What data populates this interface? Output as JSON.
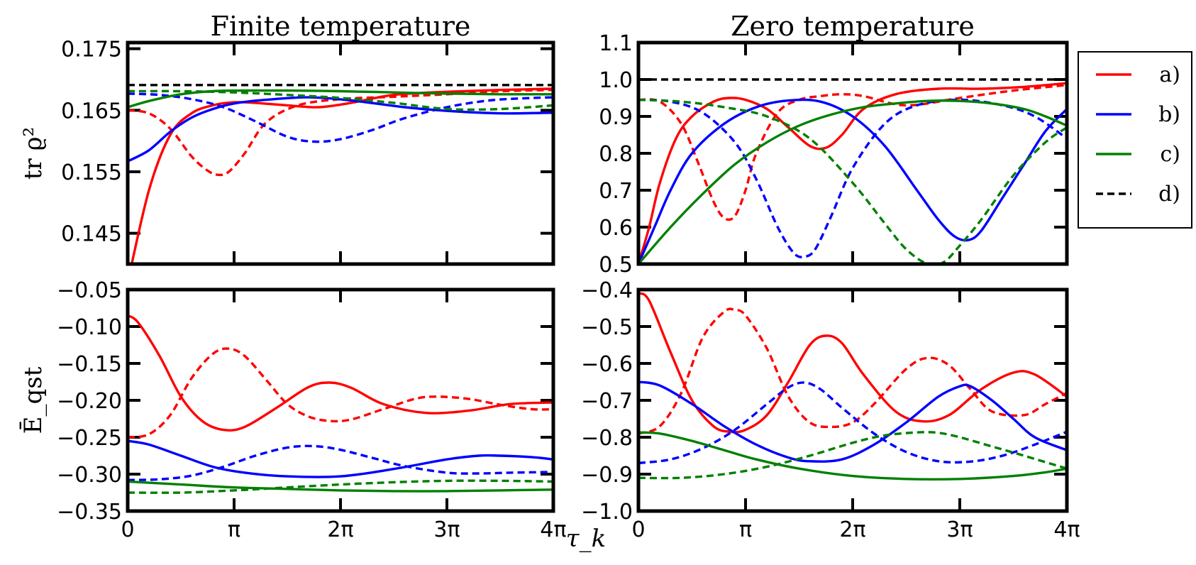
{
  "figure": {
    "xlabel": "τ_k",
    "legend": {
      "placement": "right-of-top-panels",
      "entries": [
        {
          "label": "a)",
          "color": "#ff0000",
          "dashed": false
        },
        {
          "label": "b)",
          "color": "#0000ff",
          "dashed": false
        },
        {
          "label": "c)",
          "color": "#008000",
          "dashed": false
        },
        {
          "label": "d)",
          "color": "#000000",
          "dashed": true
        }
      ]
    },
    "colors": {
      "a": "#ff0000",
      "b": "#0000ff",
      "c": "#008000",
      "d": "#000000"
    }
  },
  "chart_data": [
    {
      "id": "finite_purity",
      "type": "line",
      "title": "Finite temperature",
      "ylabel": "tr ϱ²",
      "xlabel": "",
      "xlim": [
        0,
        4
      ],
      "ylim": [
        0.14,
        0.176
      ],
      "xticks": [
        0,
        1,
        2,
        3,
        4
      ],
      "xtick_labels": [
        "0",
        "π",
        "2π",
        "3π",
        "4π"
      ],
      "show_xtick_labels": false,
      "yticks": [
        0.145,
        0.155,
        0.165,
        0.175
      ],
      "ytick_labels": [
        "0.145",
        "0.155",
        "0.165",
        "0.175"
      ],
      "series": [
        {
          "key": "a",
          "dashed": false,
          "x": [
            0,
            0.2,
            0.4,
            0.6,
            0.8,
            1,
            1.2,
            1.5,
            1.8,
            2.1,
            2.5,
            3,
            3.5,
            4
          ],
          "y": [
            0.137,
            0.152,
            0.161,
            0.1645,
            0.1658,
            0.1663,
            0.1662,
            0.1658,
            0.1655,
            0.1662,
            0.1675,
            0.168,
            0.1683,
            0.1685
          ]
        },
        {
          "key": "a",
          "dashed": true,
          "x": [
            0,
            0.2,
            0.4,
            0.6,
            0.75,
            0.85,
            0.95,
            1.1,
            1.3,
            1.6,
            2,
            2.5,
            3,
            3.5,
            4
          ],
          "y": [
            0.165,
            0.1645,
            0.162,
            0.1575,
            0.1552,
            0.1545,
            0.155,
            0.158,
            0.163,
            0.1658,
            0.1668,
            0.1672,
            0.1676,
            0.1681,
            0.1683
          ]
        },
        {
          "key": "b",
          "dashed": false,
          "x": [
            0,
            0.2,
            0.4,
            0.6,
            0.8,
            1,
            1.3,
            1.7,
            2.1,
            2.6,
            3,
            3.5,
            4
          ],
          "y": [
            0.1567,
            0.1585,
            0.1615,
            0.1638,
            0.1652,
            0.1661,
            0.1667,
            0.1671,
            0.1666,
            0.1655,
            0.1649,
            0.1645,
            0.1646
          ]
        },
        {
          "key": "b",
          "dashed": true,
          "x": [
            0,
            0.3,
            0.6,
            0.9,
            1.2,
            1.5,
            1.75,
            2,
            2.3,
            2.6,
            3,
            3.4,
            3.8,
            4
          ],
          "y": [
            0.1677,
            0.1675,
            0.1668,
            0.1655,
            0.1632,
            0.1607,
            0.1599,
            0.1603,
            0.1618,
            0.1637,
            0.1655,
            0.1666,
            0.167,
            0.1671
          ]
        },
        {
          "key": "c",
          "dashed": false,
          "x": [
            0,
            0.2,
            0.5,
            0.8,
            1.1,
            1.5,
            2,
            2.5,
            3,
            3.5,
            4
          ],
          "y": [
            0.1655,
            0.1665,
            0.1676,
            0.1681,
            0.1682,
            0.1682,
            0.1681,
            0.1679,
            0.1677,
            0.1676,
            0.1676
          ]
        },
        {
          "key": "c",
          "dashed": true,
          "x": [
            0,
            0.5,
            1,
            1.5,
            2,
            2.5,
            3,
            3.5,
            4
          ],
          "y": [
            0.1681,
            0.1681,
            0.1679,
            0.1675,
            0.167,
            0.1662,
            0.1652,
            0.1652,
            0.1658
          ]
        },
        {
          "key": "d",
          "dashed": true,
          "x": [
            0,
            4
          ],
          "y": [
            0.1691,
            0.1691
          ]
        }
      ]
    },
    {
      "id": "zero_purity",
      "type": "line",
      "title": "Zero temperature",
      "ylabel": "",
      "xlabel": "",
      "xlim": [
        0,
        4
      ],
      "ylim": [
        0.5,
        1.1
      ],
      "xticks": [
        0,
        1,
        2,
        3,
        4
      ],
      "xtick_labels": [
        "0",
        "π",
        "2π",
        "3π",
        "4π"
      ],
      "show_xtick_labels": false,
      "yticks": [
        0.5,
        0.6,
        0.7,
        0.8,
        0.9,
        1.0,
        1.1
      ],
      "ytick_labels": [
        "0.5",
        "0.6",
        "0.7",
        "0.8",
        "0.9",
        "1.0",
        "1.1"
      ],
      "series": [
        {
          "key": "a",
          "dashed": false,
          "x": [
            0,
            0.1,
            0.2,
            0.35,
            0.5,
            0.7,
            0.85,
            1,
            1.2,
            1.4,
            1.6,
            1.75,
            1.9,
            2.1,
            2.4,
            2.8,
            3.2,
            3.6,
            4
          ],
          "y": [
            0.5,
            0.6,
            0.72,
            0.84,
            0.9,
            0.94,
            0.95,
            0.945,
            0.92,
            0.87,
            0.82,
            0.815,
            0.85,
            0.92,
            0.96,
            0.975,
            0.975,
            0.98,
            0.99
          ]
        },
        {
          "key": "a",
          "dashed": true,
          "x": [
            0,
            0.2,
            0.4,
            0.55,
            0.7,
            0.8,
            0.9,
            1,
            1.1,
            1.3,
            1.5,
            1.7,
            1.9,
            2.1,
            2.5,
            3,
            3.5,
            4
          ],
          "y": [
            0.945,
            0.94,
            0.88,
            0.78,
            0.67,
            0.625,
            0.63,
            0.7,
            0.8,
            0.91,
            0.945,
            0.955,
            0.96,
            0.955,
            0.93,
            0.95,
            0.97,
            0.985
          ]
        },
        {
          "key": "b",
          "dashed": false,
          "x": [
            0,
            0.15,
            0.3,
            0.5,
            0.8,
            1.1,
            1.4,
            1.7,
            2,
            2.3,
            2.6,
            2.8,
            2.95,
            3.08,
            3.2,
            3.4,
            3.6,
            3.8,
            4
          ],
          "y": [
            0.5,
            0.6,
            0.7,
            0.8,
            0.88,
            0.925,
            0.943,
            0.94,
            0.9,
            0.82,
            0.7,
            0.62,
            0.575,
            0.565,
            0.59,
            0.68,
            0.77,
            0.86,
            0.92
          ]
        },
        {
          "key": "b",
          "dashed": true,
          "x": [
            0,
            0.3,
            0.6,
            0.9,
            1.1,
            1.3,
            1.45,
            1.55,
            1.65,
            1.8,
            2,
            2.3,
            2.6,
            3,
            3.4,
            3.7,
            4
          ],
          "y": [
            0.945,
            0.94,
            0.91,
            0.83,
            0.73,
            0.6,
            0.53,
            0.52,
            0.54,
            0.63,
            0.76,
            0.88,
            0.93,
            0.945,
            0.93,
            0.9,
            0.84
          ]
        },
        {
          "key": "c",
          "dashed": false,
          "x": [
            0,
            0.3,
            0.6,
            0.9,
            1.2,
            1.5,
            1.8,
            2.1,
            2.4,
            2.7,
            3,
            3.3,
            3.6,
            3.8,
            4
          ],
          "y": [
            0.5,
            0.6,
            0.69,
            0.77,
            0.83,
            0.875,
            0.905,
            0.925,
            0.935,
            0.942,
            0.942,
            0.935,
            0.92,
            0.9,
            0.875
          ]
        },
        {
          "key": "c",
          "dashed": true,
          "x": [
            0,
            0.4,
            0.8,
            1.2,
            1.6,
            2,
            2.3,
            2.5,
            2.7,
            2.85,
            3,
            3.2,
            3.5,
            3.8,
            4
          ],
          "y": [
            0.945,
            0.94,
            0.925,
            0.9,
            0.84,
            0.72,
            0.61,
            0.54,
            0.5,
            0.505,
            0.55,
            0.62,
            0.74,
            0.83,
            0.87
          ]
        },
        {
          "key": "d",
          "dashed": true,
          "x": [
            0,
            4
          ],
          "y": [
            1.0,
            1.0
          ]
        }
      ]
    },
    {
      "id": "finite_energy",
      "type": "line",
      "title": "",
      "ylabel": "Ē_qst",
      "xlabel": "",
      "xlim": [
        0,
        4
      ],
      "ylim": [
        -0.35,
        -0.05
      ],
      "xticks": [
        0,
        1,
        2,
        3,
        4
      ],
      "xtick_labels": [
        "0",
        "π",
        "2π",
        "3π",
        "4π"
      ],
      "show_xtick_labels": true,
      "yticks": [
        -0.35,
        -0.3,
        -0.25,
        -0.2,
        -0.15,
        -0.1,
        -0.05
      ],
      "ytick_labels": [
        "−0.35",
        "−0.30",
        "−0.25",
        "−0.20",
        "−0.15",
        "−0.10",
        "−0.05"
      ],
      "series": [
        {
          "key": "a",
          "dashed": false,
          "x": [
            0,
            0.1,
            0.3,
            0.5,
            0.7,
            0.9,
            1.1,
            1.4,
            1.7,
            1.9,
            2.1,
            2.4,
            2.8,
            3.2,
            3.6,
            4
          ],
          "y": [
            -0.085,
            -0.095,
            -0.14,
            -0.195,
            -0.228,
            -0.24,
            -0.236,
            -0.21,
            -0.182,
            -0.176,
            -0.183,
            -0.205,
            -0.217,
            -0.214,
            -0.205,
            -0.203
          ]
        },
        {
          "key": "a",
          "dashed": true,
          "x": [
            0,
            0.2,
            0.4,
            0.6,
            0.8,
            0.95,
            1.1,
            1.3,
            1.5,
            1.7,
            1.9,
            2.1,
            2.4,
            2.7,
            2.9,
            3.2,
            3.5,
            3.8,
            4
          ],
          "y": [
            -0.25,
            -0.246,
            -0.22,
            -0.17,
            -0.137,
            -0.13,
            -0.14,
            -0.172,
            -0.205,
            -0.222,
            -0.228,
            -0.226,
            -0.212,
            -0.198,
            -0.195,
            -0.198,
            -0.206,
            -0.212,
            -0.212
          ]
        },
        {
          "key": "b",
          "dashed": false,
          "x": [
            0,
            0.2,
            0.5,
            0.8,
            1.1,
            1.5,
            2,
            2.5,
            3,
            3.3,
            3.5,
            3.8,
            4
          ],
          "y": [
            -0.255,
            -0.26,
            -0.275,
            -0.29,
            -0.298,
            -0.303,
            -0.303,
            -0.293,
            -0.28,
            -0.275,
            -0.275,
            -0.277,
            -0.28
          ]
        },
        {
          "key": "b",
          "dashed": true,
          "x": [
            0,
            0.3,
            0.6,
            0.9,
            1.2,
            1.5,
            1.75,
            2,
            2.3,
            2.6,
            3,
            3.3,
            3.6,
            4
          ],
          "y": [
            -0.308,
            -0.307,
            -0.302,
            -0.29,
            -0.275,
            -0.264,
            -0.262,
            -0.267,
            -0.278,
            -0.289,
            -0.298,
            -0.299,
            -0.298,
            -0.297
          ]
        },
        {
          "key": "c",
          "dashed": false,
          "x": [
            0,
            0.5,
            1,
            1.5,
            2,
            2.5,
            3,
            3.5,
            4
          ],
          "y": [
            -0.31,
            -0.314,
            -0.318,
            -0.32,
            -0.322,
            -0.323,
            -0.323,
            -0.322,
            -0.321
          ]
        },
        {
          "key": "c",
          "dashed": true,
          "x": [
            0,
            0.5,
            1,
            1.5,
            2,
            2.5,
            3,
            3.5,
            4
          ],
          "y": [
            -0.325,
            -0.325,
            -0.322,
            -0.318,
            -0.314,
            -0.311,
            -0.309,
            -0.309,
            -0.31
          ]
        }
      ]
    },
    {
      "id": "zero_energy",
      "type": "line",
      "title": "",
      "ylabel": "",
      "xlabel": "",
      "xlim": [
        0,
        4
      ],
      "ylim": [
        -1.0,
        -0.4
      ],
      "xticks": [
        0,
        1,
        2,
        3,
        4
      ],
      "xtick_labels": [
        "0",
        "π",
        "2π",
        "3π",
        "4π"
      ],
      "show_xtick_labels": true,
      "yticks": [
        -1.0,
        -0.9,
        -0.8,
        -0.7,
        -0.6,
        -0.5,
        -0.4
      ],
      "ytick_labels": [
        "−1.0",
        "−0.9",
        "−0.8",
        "−0.7",
        "−0.6",
        "−0.5",
        "−0.4"
      ],
      "series": [
        {
          "key": "a",
          "dashed": false,
          "x": [
            0,
            0.1,
            0.3,
            0.5,
            0.7,
            0.85,
            1,
            1.2,
            1.4,
            1.6,
            1.75,
            1.9,
            2.1,
            2.4,
            2.65,
            2.9,
            3.2,
            3.5,
            3.7,
            4
          ],
          "y": [
            -0.41,
            -0.43,
            -0.57,
            -0.7,
            -0.77,
            -0.785,
            -0.78,
            -0.74,
            -0.65,
            -0.55,
            -0.525,
            -0.545,
            -0.63,
            -0.73,
            -0.757,
            -0.74,
            -0.67,
            -0.625,
            -0.63,
            -0.69
          ]
        },
        {
          "key": "a",
          "dashed": true,
          "x": [
            0,
            0.2,
            0.4,
            0.6,
            0.8,
            0.9,
            1,
            1.2,
            1.4,
            1.6,
            1.8,
            2,
            2.2,
            2.5,
            2.7,
            2.9,
            3.1,
            3.3,
            3.6,
            3.8,
            4
          ],
          "y": [
            -0.79,
            -0.77,
            -0.68,
            -0.53,
            -0.46,
            -0.455,
            -0.47,
            -0.56,
            -0.69,
            -0.76,
            -0.772,
            -0.76,
            -0.71,
            -0.615,
            -0.585,
            -0.605,
            -0.67,
            -0.73,
            -0.74,
            -0.71,
            -0.68
          ]
        },
        {
          "key": "b",
          "dashed": false,
          "x": [
            0,
            0.2,
            0.5,
            0.8,
            1.1,
            1.4,
            1.6,
            1.9,
            2.2,
            2.5,
            2.8,
            3,
            3.1,
            3.3,
            3.5,
            3.7,
            4
          ],
          "y": [
            -0.65,
            -0.66,
            -0.71,
            -0.77,
            -0.82,
            -0.855,
            -0.865,
            -0.86,
            -0.82,
            -0.76,
            -0.69,
            -0.662,
            -0.662,
            -0.7,
            -0.75,
            -0.8,
            -0.835
          ]
        },
        {
          "key": "b",
          "dashed": true,
          "x": [
            0,
            0.3,
            0.6,
            0.9,
            1.2,
            1.4,
            1.55,
            1.7,
            1.9,
            2.2,
            2.5,
            2.8,
            3.1,
            3.4,
            3.7,
            4
          ],
          "y": [
            -0.87,
            -0.86,
            -0.83,
            -0.78,
            -0.71,
            -0.665,
            -0.652,
            -0.67,
            -0.72,
            -0.79,
            -0.84,
            -0.865,
            -0.866,
            -0.85,
            -0.82,
            -0.785
          ]
        },
        {
          "key": "c",
          "dashed": false,
          "x": [
            0,
            0.2,
            0.5,
            0.8,
            1.1,
            1.5,
            2,
            2.5,
            3,
            3.5,
            3.8,
            4
          ],
          "y": [
            -0.787,
            -0.79,
            -0.81,
            -0.835,
            -0.86,
            -0.885,
            -0.905,
            -0.913,
            -0.913,
            -0.905,
            -0.895,
            -0.885
          ]
        },
        {
          "key": "c",
          "dashed": true,
          "x": [
            0,
            0.4,
            0.8,
            1.2,
            1.6,
            2,
            2.3,
            2.6,
            2.8,
            3,
            3.3,
            3.6,
            4
          ],
          "y": [
            -0.91,
            -0.91,
            -0.9,
            -0.88,
            -0.85,
            -0.815,
            -0.795,
            -0.787,
            -0.788,
            -0.8,
            -0.825,
            -0.85,
            -0.885
          ]
        }
      ]
    }
  ]
}
